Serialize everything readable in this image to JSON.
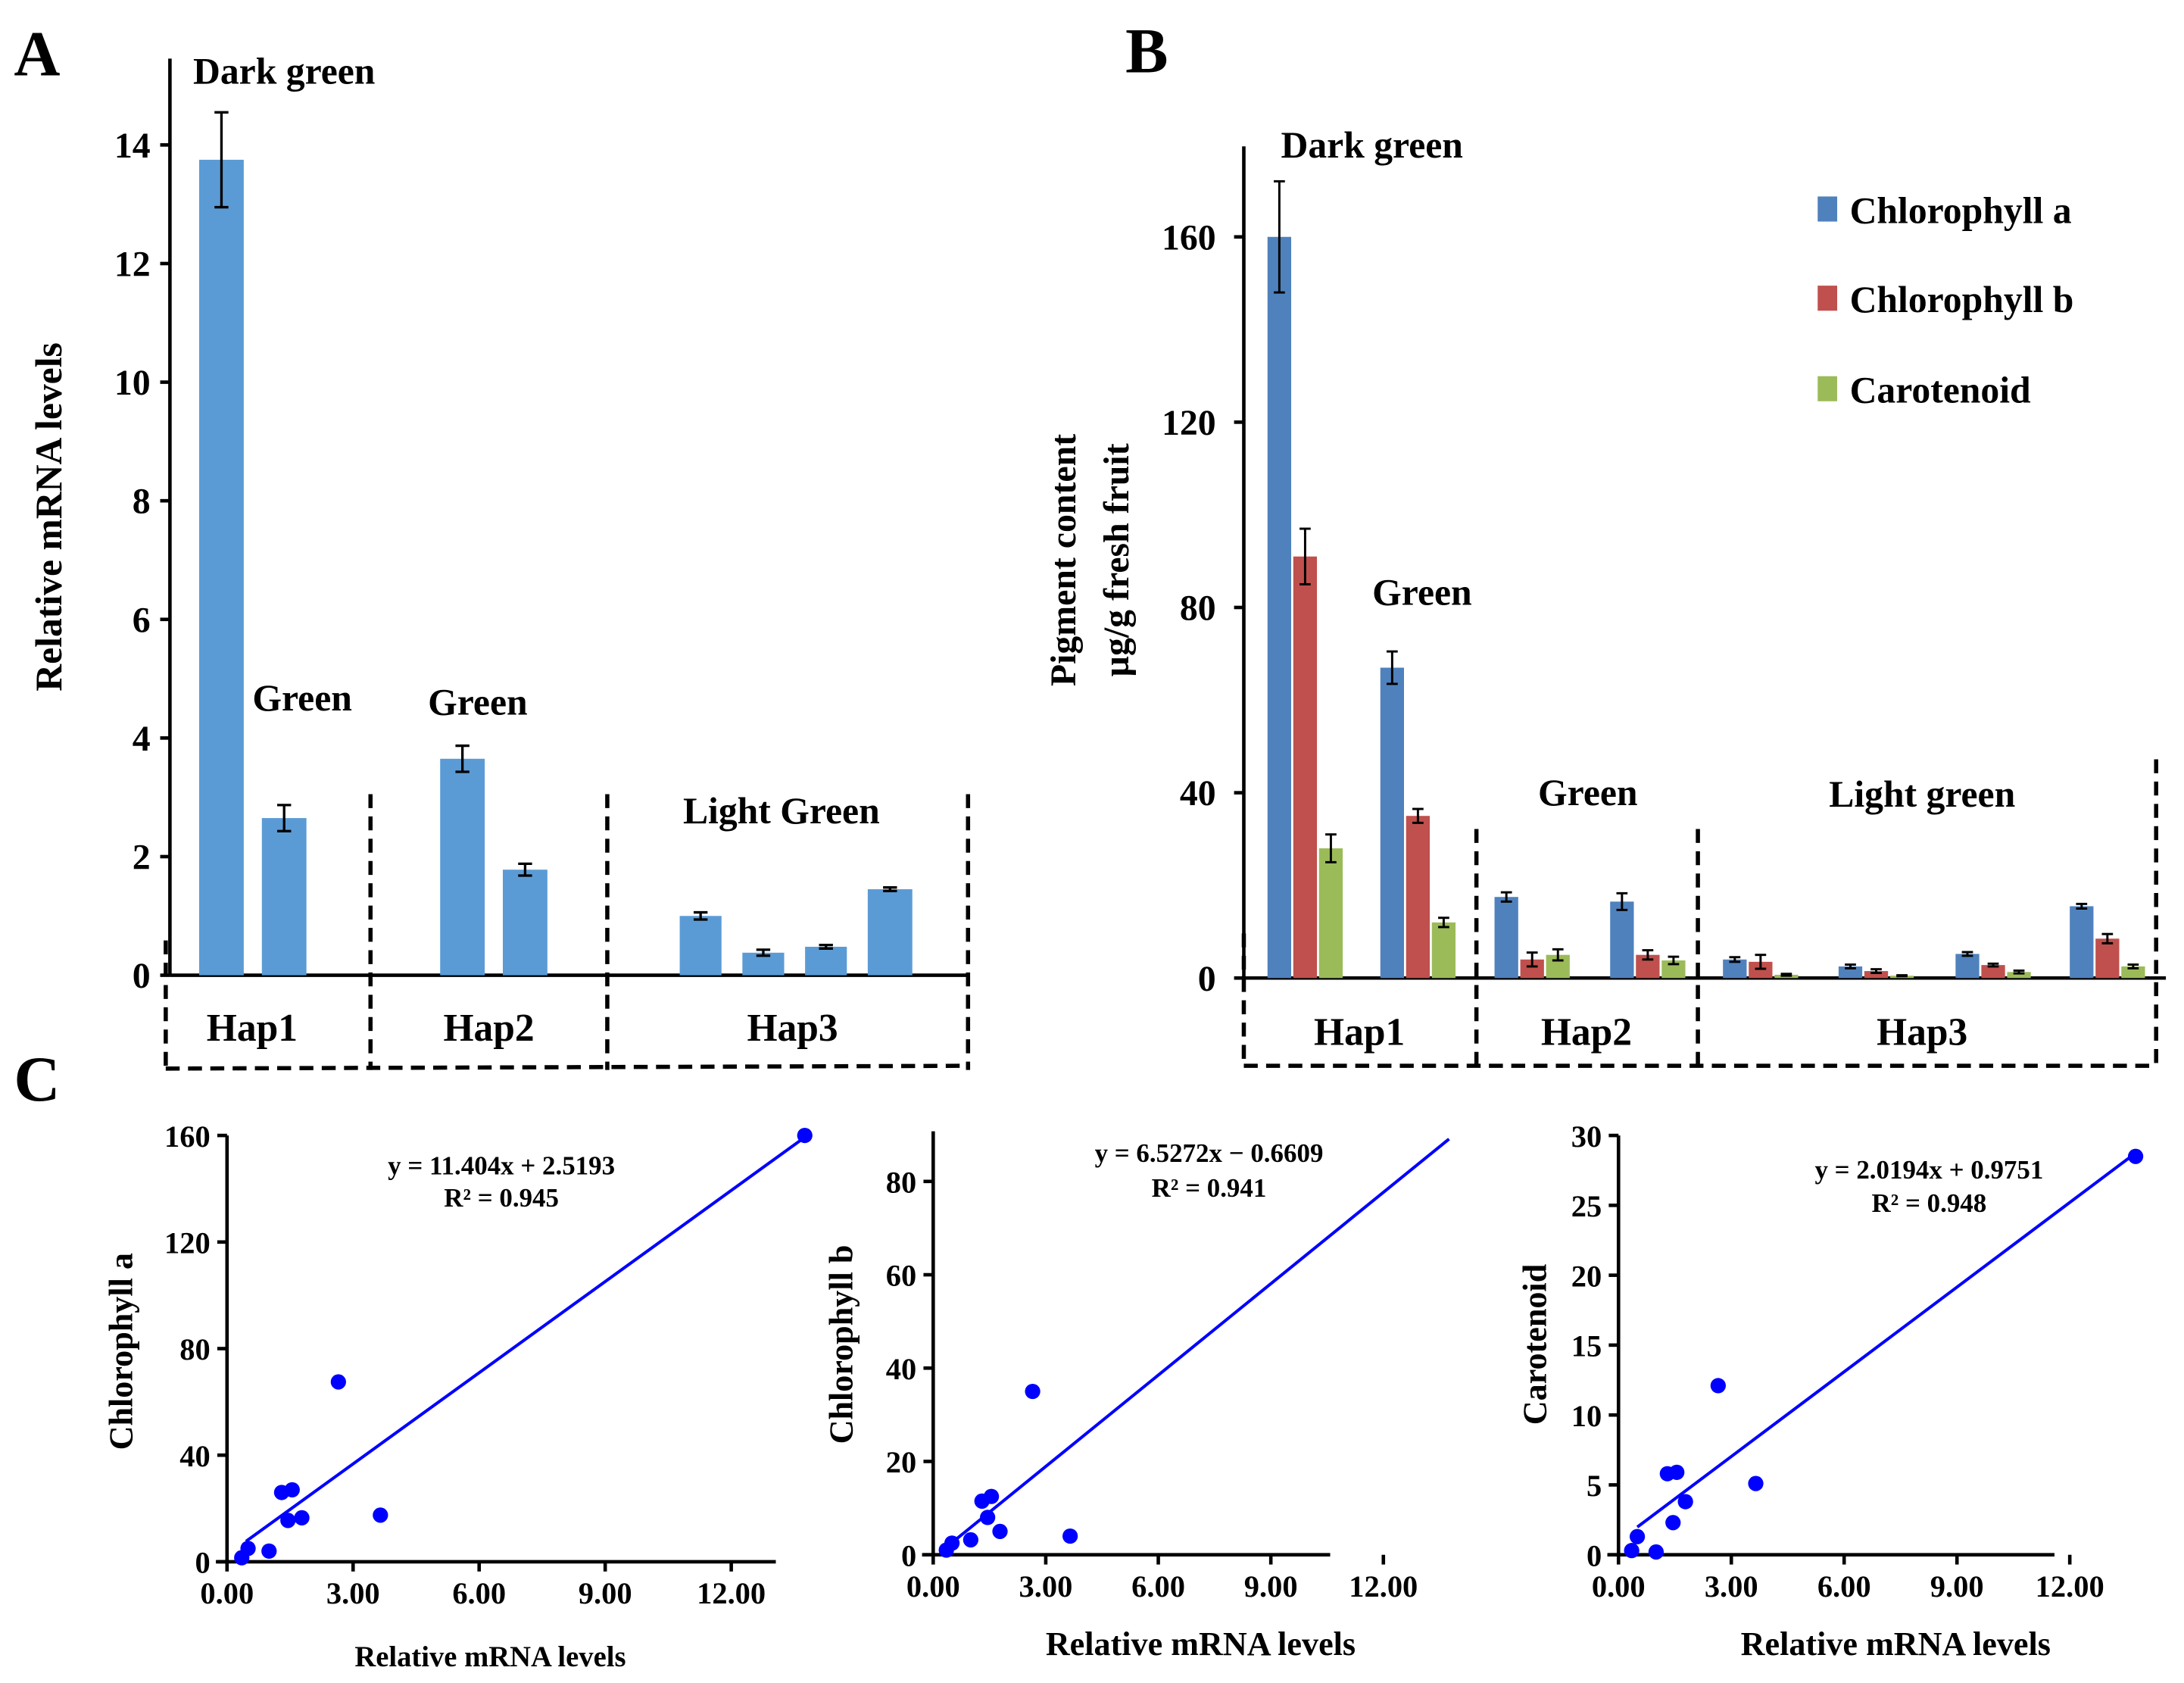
{
  "panel_letters": {
    "a": "A",
    "b": "B",
    "c": "C"
  },
  "chart_data": [
    {
      "id": "A",
      "type": "bar",
      "ylabel": "Relative mRNA levels",
      "ylim": [
        0,
        15
      ],
      "yticks": [
        0,
        2,
        4,
        6,
        8,
        10,
        12,
        14
      ],
      "groups": [
        "Hap1",
        "Hap2",
        "Hap3"
      ],
      "annotations": [
        "Dark green",
        "Green",
        "Green",
        "Light Green"
      ],
      "color": "#5b9bd5",
      "values": [
        13.75,
        2.65,
        3.65,
        1.78,
        1.0,
        0.38,
        0.48,
        1.45
      ],
      "errors": [
        0.8,
        0.22,
        0.22,
        0.1,
        0.06,
        0.05,
        0.03,
        0.03
      ],
      "bar_group": [
        "Hap1",
        "Hap1",
        "Hap2",
        "Hap2",
        "Hap3",
        "Hap3",
        "Hap3",
        "Hap3"
      ]
    },
    {
      "id": "B",
      "type": "bar",
      "ylabel": [
        "Pigment content",
        "µg/g fresh fruit"
      ],
      "ylim": [
        0,
        180
      ],
      "yticks": [
        0,
        40,
        80,
        120,
        160
      ],
      "groups": [
        "Hap1",
        "Hap2",
        "Hap3"
      ],
      "annotations": [
        "Dark green",
        "Green",
        "Green",
        "Light green"
      ],
      "legend_position": "top-right",
      "series": [
        {
          "name": "Chlorophyll a",
          "color": "#4f81bd",
          "values": [
            160,
            67,
            17.5,
            16.5,
            4,
            2.5,
            5.2,
            15.5
          ],
          "errors": [
            12,
            3.5,
            1,
            1.8,
            0.5,
            0.4,
            0.4,
            0.5
          ]
        },
        {
          "name": "Chlorophyll b",
          "color": "#c0504d",
          "values": [
            91,
            35,
            4,
            5,
            3.5,
            1.5,
            2.8,
            8.5
          ],
          "errors": [
            6,
            1.5,
            1.5,
            1,
            1.5,
            0.4,
            0.3,
            1
          ]
        },
        {
          "name": "Carotenoid",
          "color": "#9bbb59",
          "values": [
            28,
            12,
            5,
            3.8,
            0.7,
            0.5,
            1.3,
            2.5
          ],
          "errors": [
            3,
            1,
            1.2,
            0.8,
            0.2,
            0.1,
            0.3,
            0.4
          ]
        }
      ]
    },
    {
      "id": "C1",
      "type": "scatter",
      "xlabel": "Relative mRNA levels",
      "ylabel": "Chlorophyll a",
      "xlim": [
        0,
        14
      ],
      "ylim": [
        0,
        160
      ],
      "xticks": [
        "0.00",
        "3.00",
        "6.00",
        "9.00",
        "12.00"
      ],
      "yticks": [
        0,
        40,
        80,
        120,
        160
      ],
      "equation": "y = 11.404x + 2.5193",
      "r2": "R² = 0.945",
      "fit": {
        "slope": 11.404,
        "intercept": 2.5193,
        "x_range": [
          0.45,
          13.75
        ]
      },
      "color": "#0000ff",
      "points": [
        [
          0.35,
          1.5
        ],
        [
          0.5,
          5
        ],
        [
          1.0,
          4
        ],
        [
          1.3,
          26
        ],
        [
          1.45,
          15.5
        ],
        [
          1.55,
          27
        ],
        [
          1.78,
          16.5
        ],
        [
          2.65,
          67.5
        ],
        [
          3.65,
          17.5
        ],
        [
          13.75,
          160
        ]
      ]
    },
    {
      "id": "C2",
      "type": "scatter",
      "xlabel": "Relative mRNA levels",
      "ylabel": "Chlorophyll b",
      "xlim": [
        0,
        14
      ],
      "ylim": [
        0,
        90
      ],
      "xticks": [
        "0.00",
        "3.00",
        "6.00",
        "9.00",
        "12.00"
      ],
      "yticks": [
        0,
        20,
        40,
        60,
        80
      ],
      "equation": "y = 6.5272x − 0.6609",
      "r2": "R² = 0.941",
      "fit": {
        "slope": 6.5272,
        "intercept": -0.6609,
        "x_range": [
          0.35,
          13.75
        ]
      },
      "color": "#0000ff",
      "points": [
        [
          0.35,
          1
        ],
        [
          0.5,
          2.5
        ],
        [
          1.0,
          3.2
        ],
        [
          1.3,
          11.5
        ],
        [
          1.45,
          8
        ],
        [
          1.55,
          12.5
        ],
        [
          1.78,
          5
        ],
        [
          2.65,
          35
        ],
        [
          3.65,
          4
        ]
      ]
    },
    {
      "id": "C3",
      "type": "scatter",
      "xlabel": "Relative mRNA levels",
      "ylabel": "Carotenoid",
      "xlim": [
        0,
        14
      ],
      "ylim": [
        0,
        30
      ],
      "xticks": [
        "0.00",
        "3.00",
        "6.00",
        "9.00",
        "12.00"
      ],
      "yticks": [
        0,
        5,
        10,
        15,
        20,
        25,
        30
      ],
      "equation": "y = 2.0194x +  0.9751",
      "r2": "R² = 0.948",
      "fit": {
        "slope": 2.0194,
        "intercept": 0.9751,
        "x_range": [
          0.5,
          13.75
        ]
      },
      "color": "#0000ff",
      "points": [
        [
          0.35,
          0.3
        ],
        [
          0.5,
          1.3
        ],
        [
          1.0,
          0.2
        ],
        [
          1.3,
          5.8
        ],
        [
          1.45,
          2.3
        ],
        [
          1.55,
          5.9
        ],
        [
          1.78,
          3.8
        ],
        [
          2.65,
          12.1
        ],
        [
          3.65,
          5.1
        ],
        [
          13.75,
          28.5
        ]
      ]
    }
  ]
}
